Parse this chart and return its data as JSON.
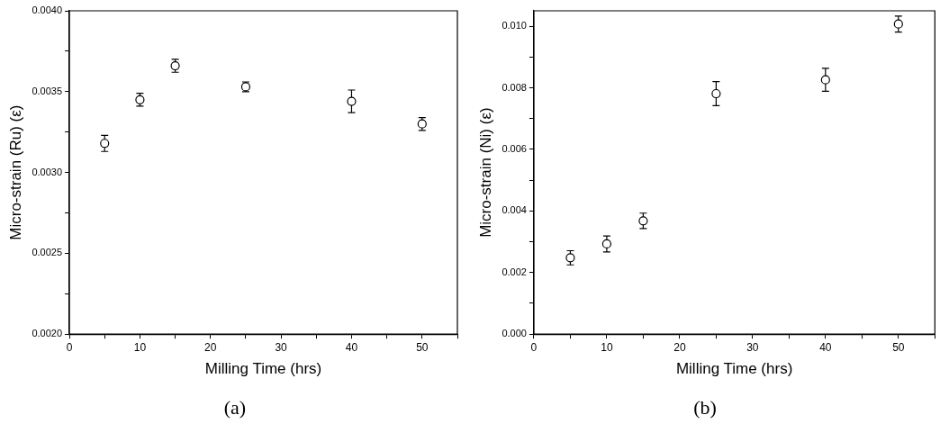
{
  "chart_data": [
    {
      "type": "scatter",
      "xlabel": "Milling Time (hrs)",
      "ylabel": "Micro-strain (Ru) (ε)",
      "marker": "circle",
      "x": [
        5,
        10,
        15,
        25,
        40,
        50
      ],
      "series": [
        {
          "color": "#000000",
          "values": [
            0.00318,
            0.00345,
            0.00366,
            0.00353,
            0.00344,
            0.0033
          ],
          "errors": [
            5e-05,
            4e-05,
            4e-05,
            3e-05,
            7e-05,
            4e-05
          ]
        }
      ],
      "xlim": [
        0,
        55
      ],
      "xticks": [
        0,
        {
          "value": 5,
          "label": null
        },
        10,
        {
          "value": 15,
          "label": null
        },
        20,
        {
          "value": 25,
          "label": null
        },
        30,
        {
          "value": 35,
          "label": null
        },
        40,
        {
          "value": 45,
          "label": null
        },
        50,
        {
          "value": 55,
          "label": null
        }
      ],
      "ylim": [
        0.002,
        0.004
      ],
      "yticks": [
        {
          "value": 0.002,
          "label": "0.0020"
        },
        {
          "value": 0.00225,
          "label": null
        },
        {
          "value": 0.0025,
          "label": "0.0025"
        },
        {
          "value": 0.00275,
          "label": null
        },
        {
          "value": 0.003,
          "label": "0.0030"
        },
        {
          "value": 0.00325,
          "label": null
        },
        {
          "value": 0.0035,
          "label": "0.0035"
        },
        {
          "value": 0.00375,
          "label": null
        },
        {
          "value": 0.004,
          "label": "0.0040"
        }
      ],
      "annotations": [
        "(a)"
      ]
    },
    {
      "type": "scatter",
      "xlabel": "Milling Time (hrs)",
      "ylabel": "Micro-strain (Ni) (ε)",
      "marker": "circle",
      "x": [
        5,
        10,
        15,
        25,
        40,
        50
      ],
      "series": [
        {
          "color": "#000000",
          "values": [
            0.00248,
            0.00293,
            0.00368,
            0.00781,
            0.00826,
            0.01007
          ],
          "errors": [
            0.00023,
            0.00026,
            0.00025,
            0.00039,
            0.00037,
            0.00026
          ]
        }
      ],
      "xlim": [
        0,
        55
      ],
      "xticks": [
        0,
        {
          "value": 5,
          "label": null
        },
        10,
        {
          "value": 15,
          "label": null
        },
        20,
        {
          "value": 25,
          "label": null
        },
        30,
        {
          "value": 35,
          "label": null
        },
        40,
        {
          "value": 45,
          "label": null
        },
        50,
        {
          "value": 55,
          "label": null
        }
      ],
      "ylim": [
        0,
        0.0105
      ],
      "yticks": [
        {
          "value": 0,
          "label": "0.000"
        },
        {
          "value": 0.001,
          "label": null
        },
        {
          "value": 0.002,
          "label": "0.002"
        },
        {
          "value": 0.003,
          "label": null
        },
        {
          "value": 0.004,
          "label": "0.004"
        },
        {
          "value": 0.005,
          "label": null
        },
        {
          "value": 0.006,
          "label": "0.006"
        },
        {
          "value": 0.007,
          "label": null
        },
        {
          "value": 0.008,
          "label": "0.008"
        },
        {
          "value": 0.009,
          "label": null
        },
        {
          "value": 0.01,
          "label": "0.010"
        }
      ],
      "annotations": [
        "(b)"
      ]
    }
  ]
}
